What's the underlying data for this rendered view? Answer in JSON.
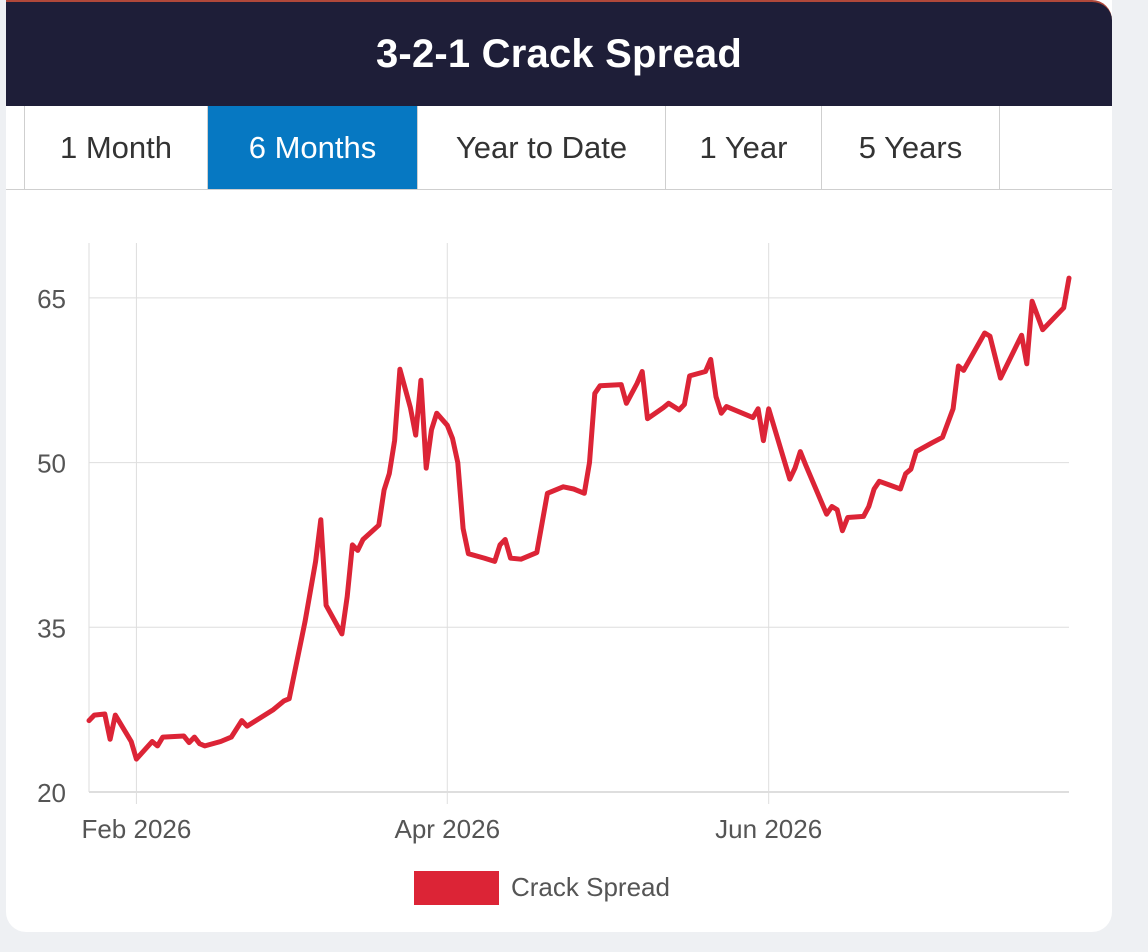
{
  "header": {
    "title": "3-2-1 Crack Spread"
  },
  "tabs": [
    {
      "label": "1 Month",
      "active": false
    },
    {
      "label": "6 Months",
      "active": true
    },
    {
      "label": "Year to Date",
      "active": false
    },
    {
      "label": "1 Year",
      "active": false
    },
    {
      "label": "5 Years",
      "active": false
    }
  ],
  "colors": {
    "header_bg": "#1e1e38",
    "active_tab": "#0678c2",
    "series": "#dc2436"
  },
  "chart_data": {
    "type": "line",
    "title": "",
    "xlabel": "",
    "ylabel": "",
    "ylim": [
      20,
      70
    ],
    "yticks": [
      20,
      35,
      50,
      65
    ],
    "xlim": [
      "2026-01-23",
      "2026-07-28"
    ],
    "xticks": [
      {
        "date": "2026-02-01",
        "label": "Feb 2026"
      },
      {
        "date": "2026-04-01",
        "label": "Apr 2026"
      },
      {
        "date": "2026-06-01",
        "label": "Jun 2026"
      }
    ],
    "grid": true,
    "legend": "bottom-center",
    "series": [
      {
        "name": "Crack Spread",
        "color": "#dc2436",
        "points": [
          [
            "2026-01-23",
            26.5
          ],
          [
            "2026-01-24",
            27.0
          ],
          [
            "2026-01-26",
            27.1
          ],
          [
            "2026-01-27",
            24.8
          ],
          [
            "2026-01-28",
            27.0
          ],
          [
            "2026-01-31",
            24.6
          ],
          [
            "2026-02-01",
            23.0
          ],
          [
            "2026-02-04",
            24.6
          ],
          [
            "2026-02-05",
            24.2
          ],
          [
            "2026-02-06",
            25.0
          ],
          [
            "2026-02-10",
            25.1
          ],
          [
            "2026-02-11",
            24.5
          ],
          [
            "2026-02-12",
            25.0
          ],
          [
            "2026-02-13",
            24.4
          ],
          [
            "2026-02-14",
            24.2
          ],
          [
            "2026-02-17",
            24.6
          ],
          [
            "2026-02-19",
            25.0
          ],
          [
            "2026-02-21",
            26.5
          ],
          [
            "2026-02-22",
            26.0
          ],
          [
            "2026-02-27",
            27.5
          ],
          [
            "2026-03-01",
            28.3
          ],
          [
            "2026-03-02",
            28.5
          ],
          [
            "2026-03-05",
            35.5
          ],
          [
            "2026-03-07",
            41.0
          ],
          [
            "2026-03-08",
            44.8
          ],
          [
            "2026-03-09",
            37.0
          ],
          [
            "2026-03-12",
            34.4
          ],
          [
            "2026-03-13",
            37.8
          ],
          [
            "2026-03-14",
            42.5
          ],
          [
            "2026-03-15",
            42.0
          ],
          [
            "2026-03-16",
            43.0
          ],
          [
            "2026-03-19",
            44.3
          ],
          [
            "2026-03-20",
            47.5
          ],
          [
            "2026-03-21",
            49.0
          ],
          [
            "2026-03-22",
            52.0
          ],
          [
            "2026-03-23",
            58.5
          ],
          [
            "2026-03-25",
            55.0
          ],
          [
            "2026-03-26",
            52.5
          ],
          [
            "2026-03-27",
            57.5
          ],
          [
            "2026-03-28",
            49.5
          ],
          [
            "2026-03-29",
            53.0
          ],
          [
            "2026-03-30",
            54.5
          ],
          [
            "2026-04-01",
            53.4
          ],
          [
            "2026-04-02",
            52.2
          ],
          [
            "2026-04-03",
            50.0
          ],
          [
            "2026-04-04",
            44.0
          ],
          [
            "2026-04-05",
            41.7
          ],
          [
            "2026-04-08",
            41.3
          ],
          [
            "2026-04-10",
            41.0
          ],
          [
            "2026-04-11",
            42.5
          ],
          [
            "2026-04-12",
            43.0
          ],
          [
            "2026-04-13",
            41.3
          ],
          [
            "2026-04-15",
            41.2
          ],
          [
            "2026-04-18",
            41.8
          ],
          [
            "2026-04-20",
            47.2
          ],
          [
            "2026-04-23",
            47.8
          ],
          [
            "2026-04-25",
            47.6
          ],
          [
            "2026-04-27",
            47.2
          ],
          [
            "2026-04-28",
            50.0
          ],
          [
            "2026-04-29",
            56.3
          ],
          [
            "2026-04-30",
            57.0
          ],
          [
            "2026-05-04",
            57.1
          ],
          [
            "2026-05-05",
            55.4
          ],
          [
            "2026-05-07",
            57.2
          ],
          [
            "2026-05-08",
            58.3
          ],
          [
            "2026-05-09",
            54.0
          ],
          [
            "2026-05-12",
            55.0
          ],
          [
            "2026-05-13",
            55.4
          ],
          [
            "2026-05-15",
            54.8
          ],
          [
            "2026-05-16",
            55.3
          ],
          [
            "2026-05-17",
            57.9
          ],
          [
            "2026-05-20",
            58.3
          ],
          [
            "2026-05-21",
            59.4
          ],
          [
            "2026-05-22",
            56.0
          ],
          [
            "2026-05-23",
            54.5
          ],
          [
            "2026-05-24",
            55.1
          ],
          [
            "2026-05-29",
            54.1
          ],
          [
            "2026-05-30",
            54.9
          ],
          [
            "2026-05-31",
            52.0
          ],
          [
            "2026-06-01",
            54.9
          ],
          [
            "2026-06-05",
            48.5
          ],
          [
            "2026-06-06",
            49.5
          ],
          [
            "2026-06-07",
            51.0
          ],
          [
            "2026-06-08",
            49.8
          ],
          [
            "2026-06-12",
            45.3
          ],
          [
            "2026-06-13",
            46.0
          ],
          [
            "2026-06-14",
            45.7
          ],
          [
            "2026-06-15",
            43.8
          ],
          [
            "2026-06-16",
            45.0
          ],
          [
            "2026-06-19",
            45.1
          ],
          [
            "2026-06-20",
            46.0
          ],
          [
            "2026-06-21",
            47.6
          ],
          [
            "2026-06-22",
            48.3
          ],
          [
            "2026-06-26",
            47.6
          ],
          [
            "2026-06-27",
            49.0
          ],
          [
            "2026-06-28",
            49.4
          ],
          [
            "2026-06-29",
            51.0
          ],
          [
            "2026-07-02",
            51.8
          ],
          [
            "2026-07-04",
            52.3
          ],
          [
            "2026-07-06",
            54.9
          ],
          [
            "2026-07-07",
            58.8
          ],
          [
            "2026-07-08",
            58.4
          ],
          [
            "2026-07-12",
            61.8
          ],
          [
            "2026-07-13",
            61.5
          ],
          [
            "2026-07-15",
            57.7
          ],
          [
            "2026-07-19",
            61.6
          ],
          [
            "2026-07-20",
            59.0
          ],
          [
            "2026-07-21",
            64.7
          ],
          [
            "2026-07-22",
            63.4
          ],
          [
            "2026-07-23",
            62.1
          ],
          [
            "2026-07-27",
            64.1
          ],
          [
            "2026-07-28",
            66.8
          ]
        ]
      }
    ]
  }
}
